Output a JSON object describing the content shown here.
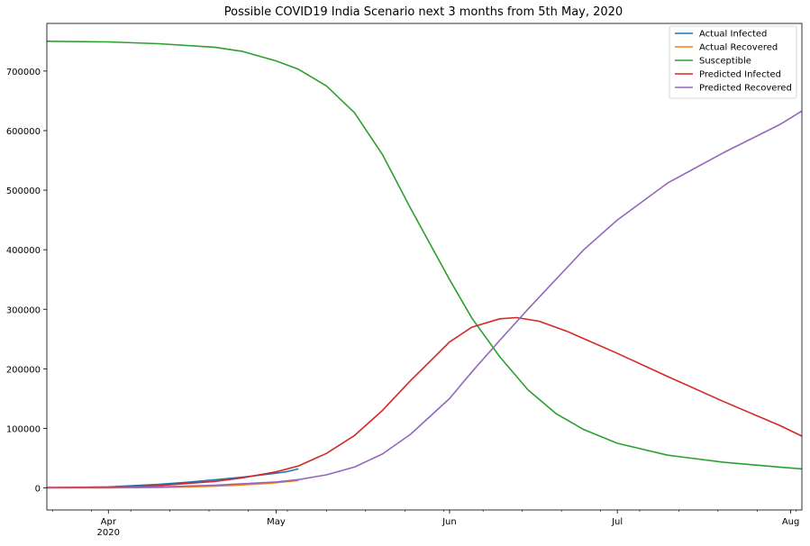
{
  "chart_data": {
    "type": "line",
    "title": "Possible COVID19 India Scenario next 3 months from 5th May, 2020",
    "xlabel": "",
    "ylabel": "",
    "x_axis": {
      "start": "2020-03-21",
      "end": "2020-08-03",
      "ticks": [
        {
          "date": "2020-04-01",
          "label": "Apr",
          "sublabel": "2020"
        },
        {
          "date": "2020-05-01",
          "label": "May",
          "sublabel": ""
        },
        {
          "date": "2020-06-01",
          "label": "Jun",
          "sublabel": ""
        },
        {
          "date": "2020-07-01",
          "label": "Jul",
          "sublabel": ""
        },
        {
          "date": "2020-08-01",
          "label": "Aug",
          "sublabel": ""
        }
      ]
    },
    "ylim": [
      -37000,
      780000
    ],
    "yticks": [
      0,
      100000,
      200000,
      300000,
      400000,
      500000,
      600000,
      700000
    ],
    "grid": false,
    "legend_position": "top-right",
    "series": [
      {
        "name": "Actual Infected",
        "color": "#1f77b4",
        "points": [
          [
            "2020-03-21",
            300
          ],
          [
            "2020-03-26",
            600
          ],
          [
            "2020-04-01",
            1800
          ],
          [
            "2020-04-05",
            3500
          ],
          [
            "2020-04-10",
            6000
          ],
          [
            "2020-04-15",
            9500
          ],
          [
            "2020-04-20",
            13500
          ],
          [
            "2020-04-25",
            18000
          ],
          [
            "2020-04-30",
            23500
          ],
          [
            "2020-05-03",
            27500
          ],
          [
            "2020-05-05",
            32000
          ]
        ]
      },
      {
        "name": "Actual Recovered",
        "color": "#ff7f0e",
        "points": [
          [
            "2020-03-21",
            30
          ],
          [
            "2020-04-01",
            150
          ],
          [
            "2020-04-10",
            700
          ],
          [
            "2020-04-15",
            1600
          ],
          [
            "2020-04-20",
            3000
          ],
          [
            "2020-04-25",
            5000
          ],
          [
            "2020-04-30",
            8000
          ],
          [
            "2020-05-05",
            12500
          ]
        ]
      },
      {
        "name": "Susceptible",
        "color": "#2ca02c",
        "points": [
          [
            "2020-03-21",
            750000
          ],
          [
            "2020-04-01",
            749000
          ],
          [
            "2020-04-10",
            746000
          ],
          [
            "2020-04-20",
            740000
          ],
          [
            "2020-04-25",
            733000
          ],
          [
            "2020-05-01",
            717000
          ],
          [
            "2020-05-05",
            703000
          ],
          [
            "2020-05-10",
            675000
          ],
          [
            "2020-05-15",
            630000
          ],
          [
            "2020-05-20",
            560000
          ],
          [
            "2020-05-25",
            470000
          ],
          [
            "2020-06-01",
            350000
          ],
          [
            "2020-06-05",
            285000
          ],
          [
            "2020-06-10",
            220000
          ],
          [
            "2020-06-15",
            165000
          ],
          [
            "2020-06-20",
            125000
          ],
          [
            "2020-06-25",
            98000
          ],
          [
            "2020-07-01",
            75000
          ],
          [
            "2020-07-10",
            55000
          ],
          [
            "2020-07-20",
            43000
          ],
          [
            "2020-07-30",
            35000
          ],
          [
            "2020-08-03",
            32000
          ]
        ]
      },
      {
        "name": "Predicted Infected",
        "color": "#d62728",
        "points": [
          [
            "2020-03-21",
            700
          ],
          [
            "2020-04-01",
            1500
          ],
          [
            "2020-04-10",
            4000
          ],
          [
            "2020-04-20",
            11000
          ],
          [
            "2020-04-25",
            17000
          ],
          [
            "2020-05-01",
            27000
          ],
          [
            "2020-05-05",
            37000
          ],
          [
            "2020-05-10",
            58000
          ],
          [
            "2020-05-15",
            88000
          ],
          [
            "2020-05-20",
            130000
          ],
          [
            "2020-05-25",
            180000
          ],
          [
            "2020-06-01",
            245000
          ],
          [
            "2020-06-05",
            270000
          ],
          [
            "2020-06-10",
            284000
          ],
          [
            "2020-06-13",
            286000
          ],
          [
            "2020-06-17",
            280000
          ],
          [
            "2020-06-22",
            263000
          ],
          [
            "2020-07-01",
            226000
          ],
          [
            "2020-07-10",
            187000
          ],
          [
            "2020-07-20",
            145000
          ],
          [
            "2020-07-30",
            105000
          ],
          [
            "2020-08-03",
            87000
          ]
        ]
      },
      {
        "name": "Predicted Recovered",
        "color": "#9467bd",
        "points": [
          [
            "2020-03-21",
            0
          ],
          [
            "2020-04-01",
            400
          ],
          [
            "2020-04-10",
            1800
          ],
          [
            "2020-04-20",
            4500
          ],
          [
            "2020-04-25",
            7000
          ],
          [
            "2020-05-01",
            10000
          ],
          [
            "2020-05-05",
            14000
          ],
          [
            "2020-05-10",
            22000
          ],
          [
            "2020-05-15",
            35000
          ],
          [
            "2020-05-20",
            57000
          ],
          [
            "2020-05-25",
            90000
          ],
          [
            "2020-06-01",
            150000
          ],
          [
            "2020-06-05",
            195000
          ],
          [
            "2020-06-10",
            248000
          ],
          [
            "2020-06-15",
            300000
          ],
          [
            "2020-06-20",
            350000
          ],
          [
            "2020-06-25",
            400000
          ],
          [
            "2020-07-01",
            450000
          ],
          [
            "2020-07-10",
            512000
          ],
          [
            "2020-07-20",
            563000
          ],
          [
            "2020-07-30",
            610000
          ],
          [
            "2020-08-03",
            633000
          ]
        ]
      }
    ]
  }
}
